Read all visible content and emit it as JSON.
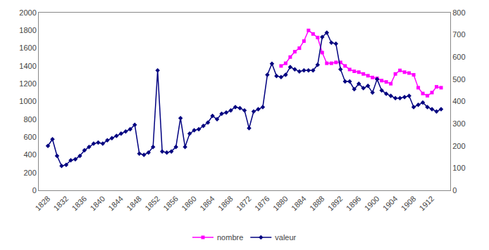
{
  "chart_data": {
    "type": "line",
    "series": [
      {
        "name": "nombre",
        "color": "#FF00FF",
        "marker": "square",
        "x": [
          1879,
          1880,
          1881,
          1882,
          1883,
          1884,
          1885,
          1886,
          1887,
          1888,
          1889,
          1890,
          1891,
          1892,
          1893,
          1894,
          1895,
          1896,
          1897,
          1898,
          1899,
          1900,
          1901,
          1902,
          1903,
          1904,
          1905,
          1906,
          1907,
          1908,
          1909,
          1910,
          1911,
          1912,
          1913,
          1914
        ],
        "values": [
          1400,
          1430,
          1500,
          1560,
          1600,
          1680,
          1800,
          1760,
          1720,
          1550,
          1430,
          1430,
          1440,
          1440,
          1400,
          1360,
          1340,
          1330,
          1310,
          1290,
          1270,
          1260,
          1235,
          1220,
          1200,
          1310,
          1350,
          1330,
          1320,
          1300,
          1155,
          1090,
          1065,
          1100,
          1165,
          1155
        ]
      },
      {
        "name": "valeur",
        "color": "#000080",
        "marker": "diamond",
        "axis": "y2",
        "x": [
          1828,
          1829,
          1830,
          1831,
          1832,
          1833,
          1834,
          1835,
          1836,
          1837,
          1838,
          1839,
          1840,
          1841,
          1842,
          1843,
          1844,
          1845,
          1846,
          1847,
          1848,
          1849,
          1850,
          1851,
          1852,
          1853,
          1854,
          1855,
          1856,
          1857,
          1858,
          1859,
          1860,
          1861,
          1862,
          1863,
          1864,
          1865,
          1866,
          1867,
          1868,
          1869,
          1870,
          1871,
          1872,
          1873,
          1874,
          1875,
          1876,
          1877,
          1878,
          1879,
          1880,
          1881,
          1882,
          1883,
          1884,
          1885,
          1886,
          1887,
          1888,
          1889,
          1890,
          1891,
          1892,
          1893,
          1894,
          1895,
          1896,
          1897,
          1898,
          1899,
          1900,
          1901,
          1902,
          1903,
          1904,
          1905,
          1906,
          1907,
          1908,
          1909,
          1910,
          1911,
          1912,
          1913,
          1914
        ],
        "values": [
          200,
          230,
          155,
          110,
          115,
          135,
          140,
          155,
          180,
          195,
          210,
          215,
          210,
          225,
          235,
          245,
          255,
          265,
          275,
          295,
          165,
          160,
          170,
          195,
          540,
          175,
          170,
          175,
          195,
          325,
          195,
          255,
          270,
          275,
          290,
          305,
          335,
          320,
          345,
          350,
          360,
          375,
          370,
          360,
          280,
          355,
          365,
          375,
          520,
          570,
          515,
          510,
          520,
          555,
          545,
          535,
          540,
          540,
          540,
          565,
          690,
          710,
          665,
          660,
          545,
          490,
          490,
          455,
          480,
          460,
          470,
          440,
          500,
          450,
          435,
          425,
          415,
          415,
          420,
          425,
          375,
          385,
          395,
          375,
          365,
          355,
          365
        ]
      }
    ],
    "xlim": [
      1826,
      1916
    ],
    "xticks": [
      1828,
      1832,
      1836,
      1840,
      1844,
      1848,
      1852,
      1856,
      1860,
      1864,
      1868,
      1872,
      1876,
      1880,
      1884,
      1888,
      1892,
      1896,
      1900,
      1904,
      1908,
      1912
    ],
    "ylim": [
      0,
      2000
    ],
    "yticks": [
      0,
      200,
      400,
      600,
      800,
      1000,
      1200,
      1400,
      1600,
      1800,
      2000
    ],
    "y2lim": [
      0,
      800
    ],
    "y2ticks": [
      0,
      100,
      200,
      300,
      400,
      500,
      600,
      700,
      800
    ],
    "grid": false,
    "legend": "bottom"
  }
}
